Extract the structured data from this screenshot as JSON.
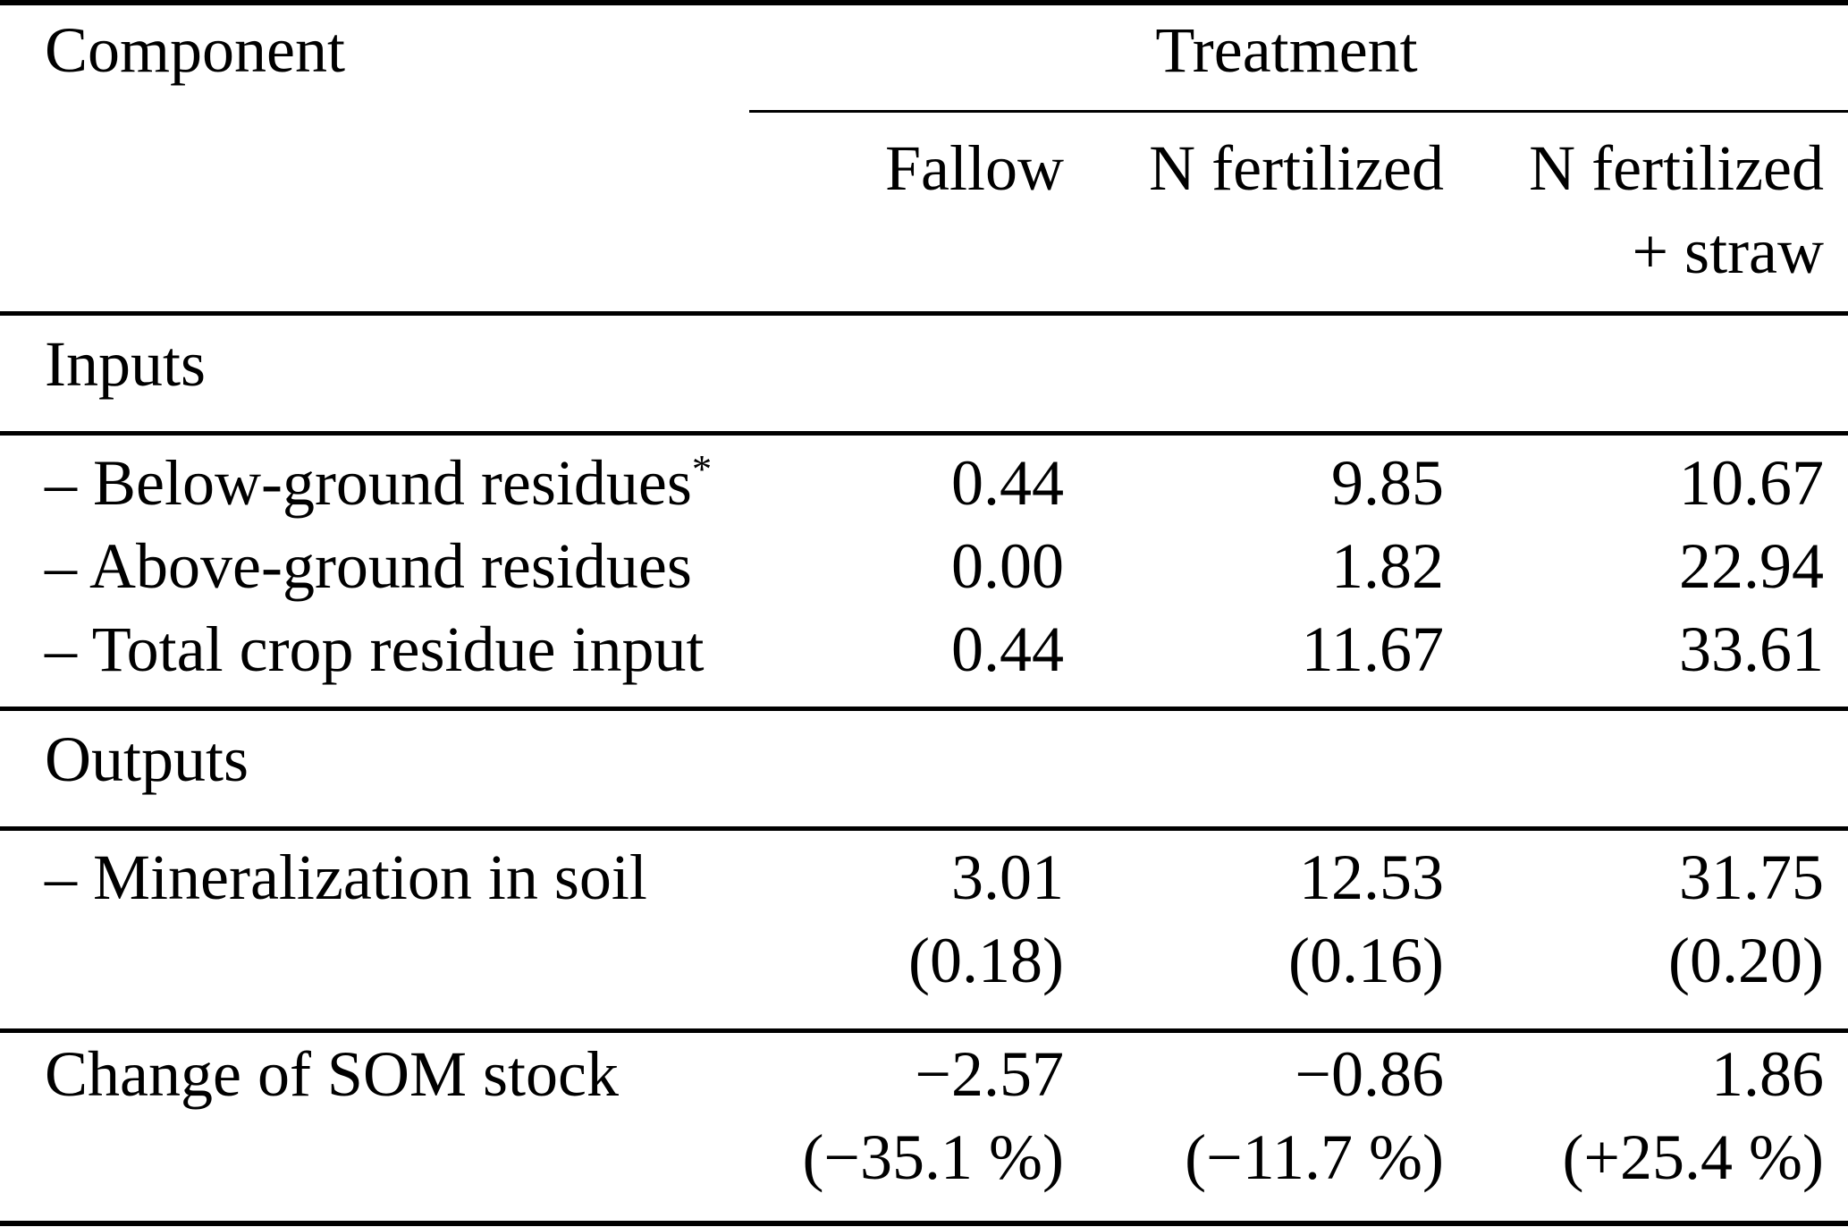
{
  "table": {
    "corner_header": "Component",
    "group_header": "Treatment",
    "col_headers": [
      {
        "line1": "Fallow",
        "line2": ""
      },
      {
        "line1": "N fertilized",
        "line2": ""
      },
      {
        "line1": "N fertilized",
        "line2": "+ straw"
      }
    ],
    "sections": [
      {
        "title": "Inputs",
        "rows": [
          {
            "label": "– Below-ground residues",
            "label_sup": "*",
            "values": [
              "0.44",
              "9.85",
              "10.67"
            ]
          },
          {
            "label": "– Above-ground residues",
            "label_sup": "",
            "values": [
              "0.00",
              "1.82",
              "22.94"
            ]
          },
          {
            "label": "– Total crop residue input",
            "label_sup": "",
            "values": [
              "0.44",
              "11.67",
              "33.61"
            ]
          }
        ]
      },
      {
        "title": "Outputs",
        "rows": [
          {
            "label": "– Mineralization in soil",
            "label_sup": "",
            "values": [
              "3.01",
              "12.53",
              "31.75"
            ],
            "values_line2": [
              "(0.18)",
              "(0.16)",
              "(0.20)"
            ]
          }
        ]
      }
    ],
    "summary_row": {
      "label": "Change of SOM stock",
      "values": [
        "−2.57",
        "−0.86",
        "1.86"
      ],
      "values_line2": [
        "(−35.1 %)",
        "(−11.7 %)",
        "(+25.4 %)"
      ]
    },
    "colors": {
      "text": "#000000",
      "background": "#ffffff",
      "rule": "#000000"
    }
  }
}
